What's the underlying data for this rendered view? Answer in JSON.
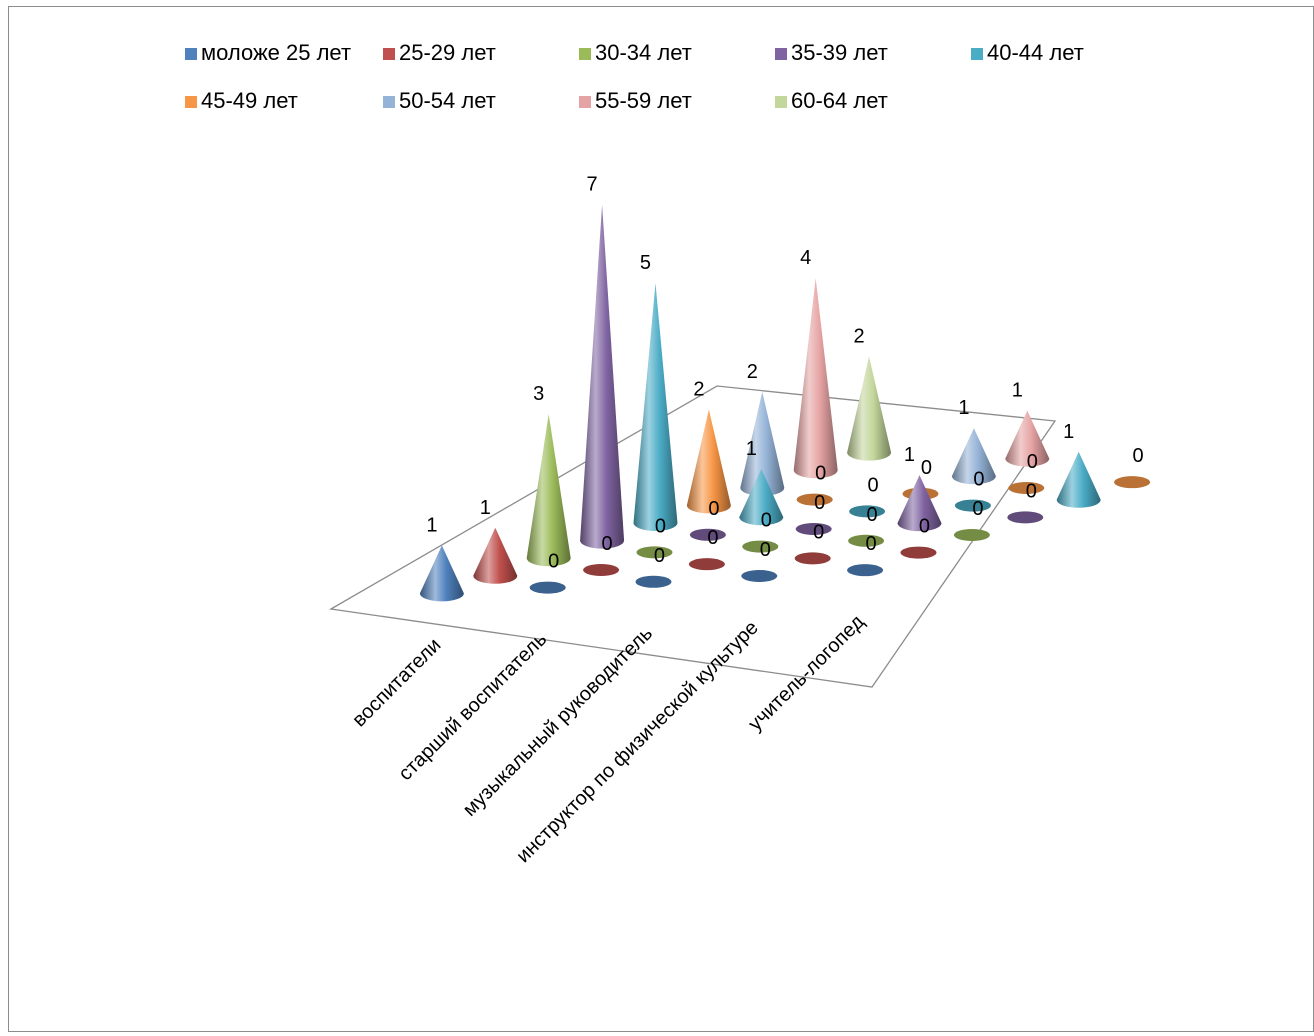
{
  "chart_data": {
    "type": "bar",
    "subtype": "3d-cone",
    "title": "",
    "xlabel": "",
    "ylabel": "",
    "legend_position": "top",
    "grid": false,
    "categories": [
      "воспитатели",
      "старший воспитатель",
      "музыкальный руководитель",
      "инструктор по физической культуре",
      "учитель-логопед"
    ],
    "series": [
      {
        "name": "моложе 25 лет",
        "color": "#4F81BD",
        "values": [
          1,
          0,
          0,
          0,
          0
        ]
      },
      {
        "name": "25-29 лет",
        "color": "#C0504D",
        "values": [
          1,
          0,
          0,
          0,
          0
        ]
      },
      {
        "name": "30-34 лет",
        "color": "#9BBB59",
        "values": [
          3,
          0,
          0,
          0,
          0
        ]
      },
      {
        "name": "35-39 лет",
        "color": "#8064A2",
        "values": [
          7,
          0,
          0,
          1,
          0
        ]
      },
      {
        "name": "40-44 лет",
        "color": "#4BACC6",
        "values": [
          5,
          1,
          0,
          0,
          1
        ]
      },
      {
        "name": "45-49 лет",
        "color": "#F79646",
        "values": [
          2,
          0,
          0,
          0,
          0
        ]
      },
      {
        "name": "50-54 лет",
        "color": "#95B3D7",
        "values": [
          2,
          null,
          1,
          null,
          null
        ]
      },
      {
        "name": "55-59 лет",
        "color": "#E6A3A3",
        "values": [
          4,
          null,
          1,
          null,
          null
        ]
      },
      {
        "name": "60-64 лет",
        "color": "#C3D69B",
        "values": [
          2,
          null,
          null,
          null,
          null
        ]
      }
    ]
  }
}
